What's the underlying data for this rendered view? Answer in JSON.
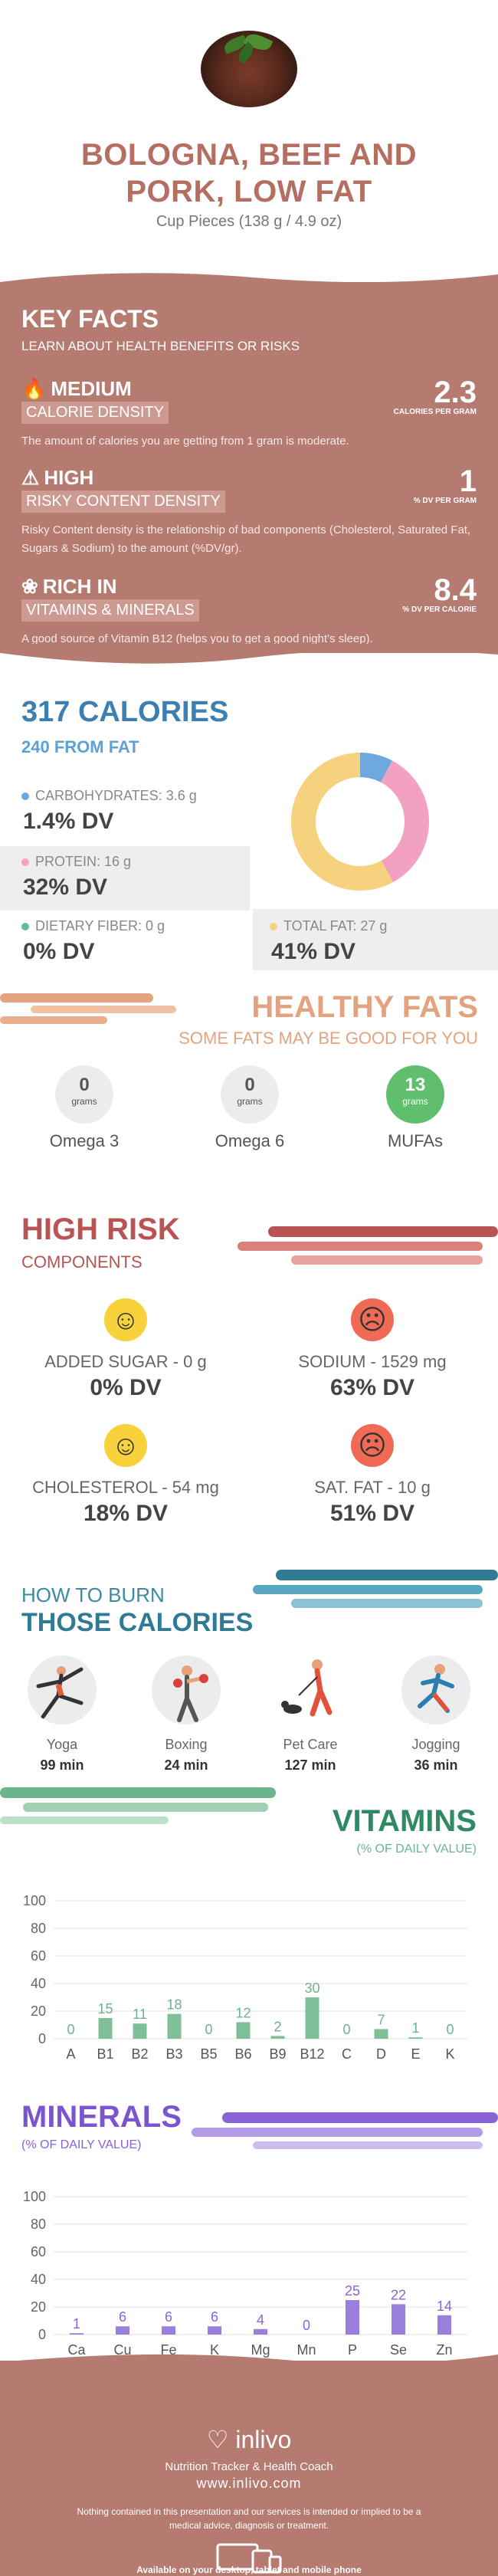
{
  "header": {
    "title_line1": "BOLOGNA, BEEF AND",
    "title_line2": "PORK, LOW FAT",
    "serving": "Cup Pieces (138 g / 4.9 oz)"
  },
  "key_facts": {
    "title": "KEY FACTS",
    "subtitle": "LEARN ABOUT HEALTH BENEFITS OR RISKS",
    "facts": [
      {
        "level": "MEDIUM",
        "label": "CALORIE DENSITY",
        "value": "2.3",
        "unit": "CALORIES PER GRAM",
        "description": "The amount of calories you are getting from 1 gram is moderate.",
        "icon": "flame-icon"
      },
      {
        "level": "HIGH",
        "label": "RISKY CONTENT DENSITY",
        "value": "1",
        "unit": "% DV PER GRAM",
        "description": "Risky Content density is the relationship of bad components (Cholesterol, Saturated Fat, Sugars & Sodium) to the amount (%DV/gr).",
        "icon": "warning-icon"
      },
      {
        "level": "RICH IN",
        "label": "VITAMINS & MINERALS",
        "value": "8.4",
        "unit": "% DV PER CALORIE",
        "description": "A good source of Vitamin B12 (helps you to get a good night's sleep).",
        "icon": "leaf-icon"
      }
    ]
  },
  "calories": {
    "title": "317 CALORIES",
    "from_fat": "240 FROM FAT",
    "nutrients": [
      {
        "label": "CARBOHYDRATES: 3.6 g",
        "dv": "1.4% DV",
        "color": "#6ea8dc"
      },
      {
        "label": "PROTEIN: 16 g",
        "dv": "32% DV",
        "color": "#f3a1c3"
      },
      {
        "label": "DIETARY FIBER: 0 g",
        "dv": "0% DV",
        "color": "#5fbf92"
      },
      {
        "label": "TOTAL FAT: 27 g",
        "dv": "41% DV",
        "color": "#f7d27e"
      }
    ]
  },
  "chart_data": [
    {
      "type": "pie",
      "categories": [
        "Carbohydrates",
        "Protein",
        "Total Fat"
      ],
      "values": [
        3.6,
        16,
        27
      ],
      "colors": [
        "#6ea8dc",
        "#f3a1c3",
        "#f7d27e"
      ],
      "title": ""
    },
    {
      "type": "bar",
      "title": "VITAMINS",
      "subtitle": "(% OF DAILY VALUE)",
      "categories": [
        "A",
        "B1",
        "B2",
        "B3",
        "B5",
        "B6",
        "B9",
        "B12",
        "C",
        "D",
        "E",
        "K"
      ],
      "values": [
        0,
        15,
        11,
        18,
        0,
        12,
        2,
        30,
        0,
        7,
        1,
        0
      ],
      "ylim": [
        0,
        100
      ],
      "yticks": [
        "0",
        "20",
        "40",
        "60",
        "80",
        "100"
      ],
      "color": "#7fbf97"
    },
    {
      "type": "bar",
      "title": "MINERALS",
      "subtitle": "(% OF DAILY VALUE)",
      "categories": [
        "Ca",
        "Cu",
        "Fe",
        "K",
        "Mg",
        "Mn",
        "P",
        "Se",
        "Zn"
      ],
      "values": [
        1,
        6,
        6,
        6,
        4,
        0,
        25,
        22,
        14
      ],
      "ylim": [
        0,
        100
      ],
      "yticks": [
        "0",
        "20",
        "40",
        "60",
        "80",
        "100"
      ],
      "color": "#9b7fdc"
    }
  ],
  "healthy_fats": {
    "title": "HEALTHY FATS",
    "subtitle": "SOME FATS MAY BE GOOD FOR YOU",
    "items": [
      {
        "value": "0",
        "unit": "grams",
        "name": "Omega 3",
        "color": "#ececec"
      },
      {
        "value": "0",
        "unit": "grams",
        "name": "Omega 6",
        "color": "#ececec"
      },
      {
        "value": "13",
        "unit": "grams",
        "name": "MUFAs",
        "color": "#5fbf6e"
      }
    ]
  },
  "high_risk": {
    "title": "HIGH RISK",
    "subtitle": "COMPONENTS",
    "items": [
      {
        "name": "ADDED SUGAR - 0 g",
        "dv": "0% DV",
        "face": "happy",
        "color": "#f7d23b"
      },
      {
        "name": "SODIUM - 1529 mg",
        "dv": "63% DV",
        "face": "sad",
        "color": "#f06a55"
      },
      {
        "name": "CHOLESTEROL - 54 mg",
        "dv": "18% DV",
        "face": "happy",
        "color": "#f7d23b"
      },
      {
        "name": "SAT. FAT - 10 g",
        "dv": "51% DV",
        "face": "sad",
        "color": "#f06a55"
      }
    ]
  },
  "burn": {
    "title1": "HOW TO BURN",
    "title2": "THOSE CALORIES",
    "activities": [
      {
        "name": "Yoga",
        "minutes": "99 min"
      },
      {
        "name": "Boxing",
        "minutes": "24 min"
      },
      {
        "name": "Pet Care",
        "minutes": "127 min"
      },
      {
        "name": "Jogging",
        "minutes": "36 min"
      }
    ]
  },
  "footer": {
    "brand": "inlivo",
    "tagline": "Nutrition Tracker & Health Coach",
    "url": "www.inlivo.com",
    "disclaimer": "Nothing contained in this presentation and our services is intended or implied to be a medical advice, diagnosis or treatment.",
    "available": "Available on your desktop, tablet and mobile phone"
  }
}
